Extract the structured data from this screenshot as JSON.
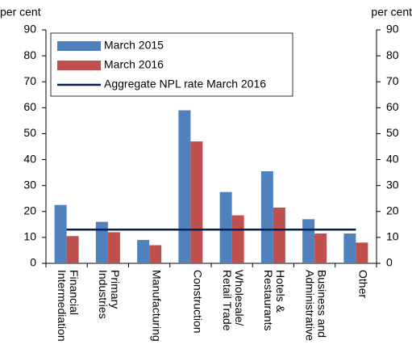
{
  "chart_data": {
    "type": "bar",
    "ylabel": "per cent",
    "y2label": "per cent",
    "categories": [
      [
        "Financial",
        "Intermediation"
      ],
      [
        "Primary",
        "Industries"
      ],
      [
        "Manufacturing"
      ],
      [
        "Construction"
      ],
      [
        "Wholesale/",
        "Retail Trade"
      ],
      [
        "Hotels &",
        "Restaurants"
      ],
      [
        "Business and",
        "Administrative"
      ],
      [
        "Other"
      ]
    ],
    "series": [
      {
        "name": "March 2015",
        "color": "#4f81bd",
        "type": "bar",
        "values": [
          22.5,
          16,
          9,
          59,
          27.5,
          35.5,
          17,
          11.5
        ]
      },
      {
        "name": "March 2016",
        "color": "#c0504d",
        "type": "bar",
        "values": [
          10.5,
          12,
          7,
          47,
          18.5,
          21.5,
          11.5,
          8
        ]
      },
      {
        "name": "Aggregate NPL rate March 2016",
        "color": "#002060",
        "type": "line",
        "values": [
          13,
          13,
          13,
          13,
          13,
          13,
          13,
          13
        ]
      }
    ],
    "ylim": [
      0,
      90
    ],
    "yticks": [
      0,
      10,
      20,
      30,
      40,
      50,
      60,
      70,
      80,
      90
    ],
    "y2lim": [
      0,
      90
    ],
    "y2ticks": [
      0,
      10,
      20,
      30,
      40,
      50,
      60,
      70,
      80,
      90
    ],
    "legend": "upper left"
  }
}
